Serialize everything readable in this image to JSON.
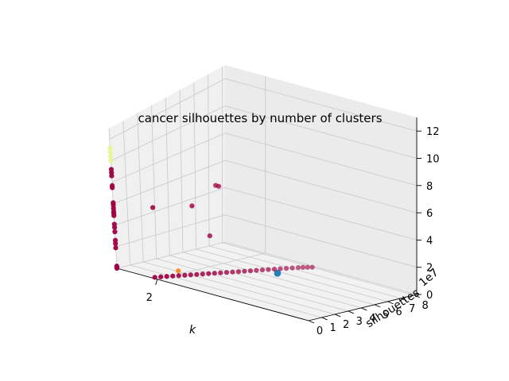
{
  "chart_data": {
    "type": "scatter",
    "projection": "3d",
    "title": "cancer silhouettes by number of clusters",
    "xlabel": "k",
    "ylabel": "silhouettes",
    "zlabel": "",
    "y_offset_text": "1e7",
    "x_ticks": [
      2
    ],
    "y_ticks": [
      0,
      1,
      2,
      3,
      4,
      5,
      6,
      7,
      8
    ],
    "z_ticks": [
      0,
      2,
      4,
      6,
      8,
      10,
      12
    ],
    "xlim": [
      1.6,
      3.5
    ],
    "ylim": [
      0,
      8.2
    ],
    "zlim": [
      0,
      13
    ],
    "grid": true,
    "series": [
      {
        "color": "#1f77b4",
        "size": 7,
        "points": [
          [
            3.2,
            0.1,
            3.6
          ]
        ]
      },
      {
        "color": "#ff7f0e",
        "size": 5,
        "points": [
          [
            2.0,
            1.6,
            0.3
          ]
        ]
      },
      {
        "color": "#e6f598",
        "size": 5,
        "points": [
          [
            1.6,
            0,
            10.0
          ],
          [
            1.6,
            0,
            10.4
          ],
          [
            1.6,
            0,
            10.8
          ],
          [
            1.6,
            0,
            11.2
          ]
        ]
      },
      {
        "color": "#9e0142",
        "size": 5,
        "points": [
          [
            1.6,
            0,
            8.6
          ],
          [
            1.6,
            0,
            8.9
          ],
          [
            1.6,
            0,
            9.2
          ],
          [
            1.6,
            0,
            7.7
          ],
          [
            1.6,
            0,
            7.5
          ],
          [
            1.6,
            0,
            6.1
          ],
          [
            1.6,
            0,
            5.9
          ],
          [
            1.6,
            0,
            5.6
          ],
          [
            1.6,
            0,
            5.3
          ],
          [
            1.6,
            0,
            5.1
          ],
          [
            1.6,
            0,
            4.9
          ],
          [
            1.6,
            0,
            4.1
          ],
          [
            1.6,
            0,
            3.8
          ],
          [
            1.6,
            0,
            3.4
          ],
          [
            1.6,
            0,
            2.6
          ],
          [
            1.6,
            0,
            2.3
          ],
          [
            1.6,
            0,
            1.9
          ],
          [
            1.6,
            0,
            0.2
          ],
          [
            1.6,
            0,
            0.1
          ],
          [
            1.6,
            0,
            0.0
          ],
          [
            2.05,
            4.2,
            6.7
          ],
          [
            2.08,
            4.2,
            6.7
          ],
          [
            1.8,
            1.4,
            5.5
          ],
          [
            2.0,
            2.8,
            5.5
          ],
          [
            2.1,
            3.3,
            3.0
          ],
          [
            1.95,
            0.2,
            0.0
          ],
          [
            1.97,
            0.5,
            0.0
          ],
          [
            1.99,
            0.8,
            0.0
          ],
          [
            2.01,
            1.1,
            0.0
          ],
          [
            2.03,
            1.4,
            0.0
          ],
          [
            2.05,
            1.7,
            0.0
          ],
          [
            2.07,
            2.0,
            0.0
          ],
          [
            2.09,
            2.3,
            0.0
          ],
          [
            2.11,
            2.6,
            0.0
          ],
          [
            2.13,
            2.9,
            0.0
          ],
          [
            2.15,
            3.2,
            0.0
          ],
          [
            2.17,
            3.5,
            0.0
          ],
          [
            2.19,
            3.8,
            0.0
          ],
          [
            2.21,
            4.1,
            0.0
          ],
          [
            2.23,
            4.4,
            0.0
          ],
          [
            2.25,
            4.7,
            0.0
          ],
          [
            2.27,
            5.0,
            0.0
          ],
          [
            2.29,
            5.3,
            0.0
          ],
          [
            2.31,
            5.6,
            0.0
          ],
          [
            2.33,
            5.9,
            0.0
          ],
          [
            2.35,
            6.2,
            0.0
          ],
          [
            2.37,
            6.5,
            0.0
          ],
          [
            2.39,
            6.8,
            0.0
          ],
          [
            2.41,
            7.1,
            0.0
          ],
          [
            2.43,
            7.4,
            0.0
          ],
          [
            2.45,
            7.6,
            0.0
          ],
          [
            2.47,
            7.8,
            0.0
          ],
          [
            2.49,
            8.0,
            0.0
          ]
        ]
      }
    ]
  }
}
